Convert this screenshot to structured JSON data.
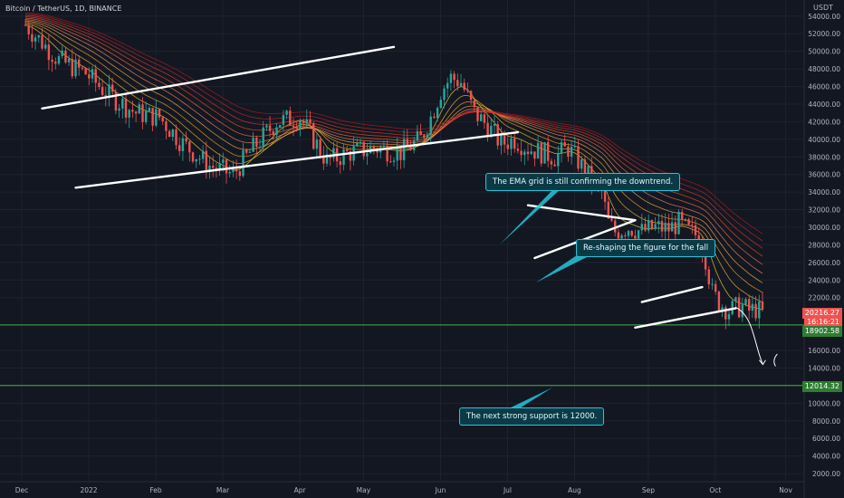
{
  "header": {
    "symbol": "Bitcoin / TetherUS, 1D, BINANCE"
  },
  "axis": {
    "unit": "USDT"
  },
  "chart_data": {
    "type": "candlestick",
    "ylim": [
      0,
      56000
    ],
    "y_ticks": [
      "54000.00",
      "52000.00",
      "50000.00",
      "48000.00",
      "46000.00",
      "44000.00",
      "42000.00",
      "40000.00",
      "38000.00",
      "36000.00",
      "34000.00",
      "32000.00",
      "30000.00",
      "28000.00",
      "26000.00",
      "24000.00",
      "22000.00",
      "16000.00",
      "14000.00",
      "12000.00",
      "10000.00",
      "8000.00",
      "6000.00",
      "4000.00",
      "2000.00"
    ],
    "x_ticks": [
      "Dec",
      "2022",
      "Feb",
      "Mar",
      "Apr",
      "May",
      "Jun",
      "Jul",
      "Aug",
      "Sep",
      "Oct",
      "Nov"
    ],
    "price_path": [
      [
        0,
        53000
      ],
      [
        10,
        49000
      ],
      [
        18,
        47500
      ],
      [
        25,
        45000
      ],
      [
        33,
        43000
      ],
      [
        40,
        42500
      ],
      [
        47,
        39500
      ],
      [
        55,
        37000
      ],
      [
        62,
        36000
      ],
      [
        68,
        39000
      ],
      [
        75,
        42000
      ],
      [
        82,
        42500
      ],
      [
        90,
        37500
      ],
      [
        97,
        38500
      ],
      [
        105,
        39000
      ],
      [
        112,
        38500
      ],
      [
        118,
        40000
      ],
      [
        121,
        42500
      ],
      [
        124,
        45500
      ],
      [
        127,
        47000
      ],
      [
        130,
        46500
      ],
      [
        134,
        43000
      ],
      [
        138,
        41500
      ],
      [
        142,
        39500
      ],
      [
        146,
        40000
      ],
      [
        150,
        39000
      ],
      [
        154,
        38500
      ],
      [
        158,
        38000
      ],
      [
        162,
        39000
      ],
      [
        165,
        37500
      ],
      [
        168,
        35800
      ],
      [
        172,
        34000
      ],
      [
        174,
        30500
      ],
      [
        176,
        29500
      ],
      [
        180,
        30000
      ],
      [
        184,
        29500
      ],
      [
        188,
        30000
      ],
      [
        192,
        29800
      ],
      [
        195,
        30500
      ],
      [
        198,
        29500
      ],
      [
        201,
        29000
      ],
      [
        203,
        26500
      ],
      [
        205,
        22500
      ],
      [
        207,
        21500
      ],
      [
        210,
        20500
      ],
      [
        212,
        20800
      ],
      [
        214,
        21000
      ],
      [
        216,
        20500
      ],
      [
        218,
        20700
      ],
      [
        220,
        20200
      ]
    ],
    "channel_lines": [
      [
        [
          5,
          43500
        ],
        [
          110,
          50500
        ]
      ],
      [
        [
          15,
          34500
        ],
        [
          147,
          40800
        ]
      ],
      [
        [
          150,
          32500
        ],
        [
          182,
          30800
        ]
      ],
      [
        [
          152,
          26500
        ],
        [
          182,
          30800
        ]
      ],
      [
        [
          184,
          21500
        ],
        [
          202,
          23200
        ]
      ],
      [
        [
          182,
          18600
        ],
        [
          212,
          20800
        ]
      ]
    ],
    "horizontal_levels": [
      {
        "price": 18902.58,
        "label": "18902.58"
      },
      {
        "price": 12014.32,
        "label": "12014.32"
      }
    ],
    "current_price": {
      "label": "20216.27",
      "countdown": "16:16:21"
    },
    "annotations": [
      "The EMA grid is still confirming the downtrend.",
      "Re-shaping the figure for the fall",
      "The next strong support is 12000."
    ]
  },
  "colors": {
    "bg": "#131722",
    "up": "#26a69a",
    "down": "#ef5350",
    "level": "#4caf50",
    "callout": "#26c6da"
  }
}
